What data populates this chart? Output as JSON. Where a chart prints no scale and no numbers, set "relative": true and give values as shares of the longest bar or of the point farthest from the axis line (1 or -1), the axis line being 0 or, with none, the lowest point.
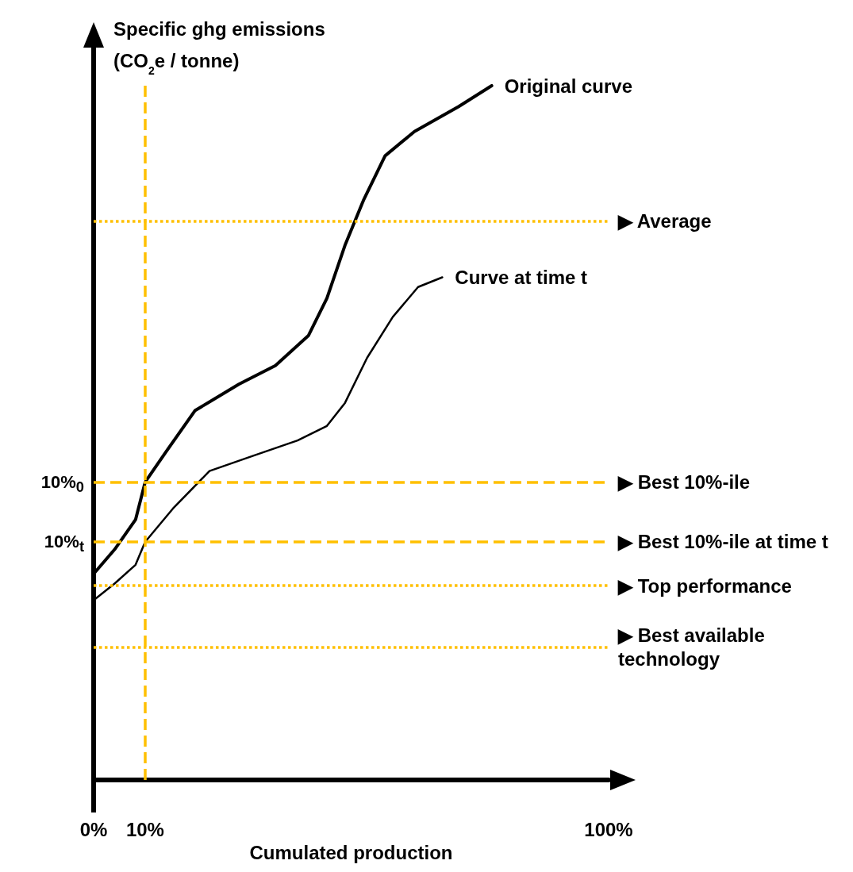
{
  "chart_data": {
    "type": "line",
    "relative": true,
    "xlabel": "Cumulated production",
    "ylabel": "Specific ghg emissions\n(CO$_{2}$e / tonne)",
    "xlim": [
      0,
      100
    ],
    "xticks": [
      {
        "value": 0,
        "label": "0%"
      },
      {
        "value": 10,
        "label": "10%"
      },
      {
        "value": 100,
        "label": "100%"
      }
    ],
    "marker": "none",
    "legend": false,
    "grid": false,
    "series": [
      {
        "name": "Original curve",
        "color": "#000000",
        "x": [
          0,
          4.07,
          8.14,
          10,
          13.98,
          19.67,
          28.2,
          35.3,
          41.7,
          45.3,
          48.8,
          52.4,
          56.6,
          62.3,
          70.9,
          77.3
        ],
        "values": [
          0.297,
          0.332,
          0.375,
          0.429,
          0.472,
          0.532,
          0.57,
          0.597,
          0.64,
          0.694,
          0.77,
          0.835,
          0.899,
          0.934,
          0.97,
          1
        ]
      },
      {
        "name": "Curve at time t",
        "color": "#000000",
        "x": [
          0,
          4.07,
          8.14,
          10,
          15.4,
          22.5,
          31.0,
          39.6,
          45.3,
          48.8,
          53.1,
          58.1,
          63.0,
          67.7
        ],
        "values": [
          0.259,
          0.283,
          0.31,
          0.343,
          0.391,
          0.445,
          0.467,
          0.489,
          0.51,
          0.543,
          0.608,
          0.667,
          0.71,
          0.724
        ]
      }
    ],
    "ref_lines": [
      {
        "axis": "y",
        "value": 0.805,
        "label": "▶ Average",
        "color": "#ffc000",
        "line_style": "dotted"
      },
      {
        "axis": "y",
        "value": 0.429,
        "label": "▶ Best 10%-ile",
        "color": "#ffc000",
        "line_style": "dashed"
      },
      {
        "axis": "y",
        "value": 0.343,
        "label": "▶ Best 10%-ile at time t",
        "color": "#ffc000",
        "line_style": "dashed"
      },
      {
        "axis": "y",
        "value": 0.28,
        "label": "▶ Top performance",
        "color": "#ffc000",
        "line_style": "dotted"
      },
      {
        "axis": "y",
        "value": 0.191,
        "label": "▶ Best available\ntechnology",
        "color": "#ffc000",
        "line_style": "dotted"
      },
      {
        "axis": "x",
        "value": 10,
        "label": null,
        "color": "#ffc000",
        "line_style": "dashed"
      }
    ],
    "annotations": [
      {
        "text": "10%$_{0}$",
        "x": 0,
        "y": 0.429
      },
      {
        "text": "10%$_{t}$",
        "x": 0,
        "y": 0.343
      }
    ]
  }
}
